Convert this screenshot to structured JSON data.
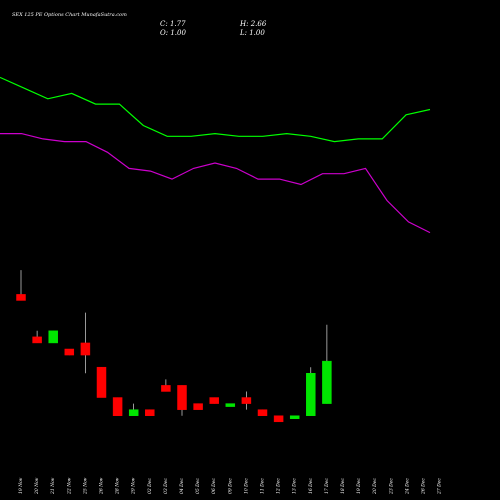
{
  "chart_data": {
    "type": "candlestick",
    "title": "SEX 125 PE Options  Chart MunafaSutra.com",
    "readout": {
      "close": "C: 1.77",
      "high": "H: 2.66",
      "open": "O: 1.00",
      "low": "L: 1.00"
    },
    "categories": [
      "19 Nov",
      "20 Nov",
      "21 Nov",
      "22 Nov",
      "25 Nov",
      "26 Nov",
      "28 Nov",
      "29 Nov",
      "02 Dec",
      "03 Dec",
      "04 Dec",
      "05 Dec",
      "06 Dec",
      "09 Dec",
      "10 Dec",
      "11 Dec",
      "12 Dec",
      "13 Dec",
      "16 Dec",
      "17 Dec",
      "18 Dec",
      "19 Dec",
      "20 Dec",
      "23 Dec",
      "24 Dec",
      "26 Dec",
      "27 Dec"
    ],
    "tick_labels": [
      "19 Nov",
      "20 Nov",
      "21 Nov",
      "22 Nov",
      "25 Nov",
      "26 Nov",
      "28 Nov",
      "29 Nov",
      "02 Dec",
      "03 Dec",
      "04 Dec",
      "05 Dec",
      "06 Dec",
      "09 Dec",
      "10 Dec",
      "11 Dec",
      "12 Dec",
      "13 Dec",
      "16 Dec",
      "17 Dec",
      "18 Dec",
      "19 Dec",
      "20 Dec",
      "23 Dec",
      "24 Dec",
      "26 Dec",
      "27 Dec"
    ],
    "ohlc": [
      {
        "o": 1.34,
        "h": 1.38,
        "l": 1.33,
        "c": 1.33
      },
      {
        "o": 1.27,
        "h": 1.28,
        "l": 1.26,
        "c": 1.26
      },
      {
        "o": 1.26,
        "h": 1.28,
        "l": 1.26,
        "c": 1.28
      },
      {
        "o": 1.25,
        "h": 1.25,
        "l": 1.24,
        "c": 1.24
      },
      {
        "o": 1.26,
        "h": 1.31,
        "l": 1.21,
        "c": 1.24
      },
      {
        "o": 1.22,
        "h": 1.22,
        "l": 1.17,
        "c": 1.17
      },
      {
        "o": 1.17,
        "h": 1.17,
        "l": 1.14,
        "c": 1.14
      },
      {
        "o": 1.14,
        "h": 1.16,
        "l": 1.14,
        "c": 1.15
      },
      {
        "o": 1.15,
        "h": 1.15,
        "l": 1.14,
        "c": 1.14
      },
      {
        "o": 1.19,
        "h": 1.2,
        "l": 1.18,
        "c": 1.18
      },
      {
        "o": 1.19,
        "h": 1.19,
        "l": 1.14,
        "c": 1.15
      },
      {
        "o": 1.16,
        "h": 1.16,
        "l": 1.15,
        "c": 1.15
      },
      {
        "o": 1.17,
        "h": 1.17,
        "l": 1.16,
        "c": 1.16
      },
      {
        "o": 1.16,
        "h": 1.16,
        "l": 1.16,
        "c": 1.16
      },
      {
        "o": 1.17,
        "h": 1.18,
        "l": 1.15,
        "c": 1.16
      },
      {
        "o": 1.15,
        "h": 1.15,
        "l": 1.14,
        "c": 1.14
      },
      {
        "o": 1.14,
        "h": 1.14,
        "l": 1.13,
        "c": 1.13
      },
      {
        "o": 1.14,
        "h": 1.14,
        "l": 1.14,
        "c": 1.14
      },
      {
        "o": 1.14,
        "h": 1.22,
        "l": 1.14,
        "c": 1.21
      },
      {
        "o": 1.16,
        "h": 1.29,
        "l": 1.16,
        "c": 1.23
      }
    ],
    "candle_dates": [
      "19 Nov",
      "20 Nov",
      "21 Nov",
      "22 Nov",
      "25 Nov",
      "26 Nov",
      "28 Nov",
      "29 Nov",
      "02 Dec",
      "03 Dec",
      "04 Dec",
      "05 Dec",
      "06 Dec",
      "09 Dec",
      "10 Dec",
      "11 Dec",
      "12 Dec",
      "13 Dec",
      "16 Dec",
      "17 Dec"
    ],
    "upper_band": [
      1.0,
      0.96,
      0.92,
      0.94,
      0.9,
      0.9,
      0.82,
      0.78,
      0.78,
      0.79,
      0.78,
      0.78,
      0.79,
      0.78,
      0.76,
      0.77,
      0.77,
      0.86,
      0.88
    ],
    "lower_band": [
      0.79,
      0.79,
      0.77,
      0.76,
      0.76,
      0.72,
      0.66,
      0.65,
      0.62,
      0.66,
      0.68,
      0.66,
      0.62,
      0.62,
      0.6,
      0.64,
      0.64,
      0.66,
      0.54,
      0.46,
      0.42
    ],
    "colors": {
      "up": "#00e600",
      "down": "#ff0000",
      "wick": "#ffffff",
      "upper_band": "#00ff00",
      "lower_band": "#cc00cc",
      "background": "#000000"
    }
  }
}
